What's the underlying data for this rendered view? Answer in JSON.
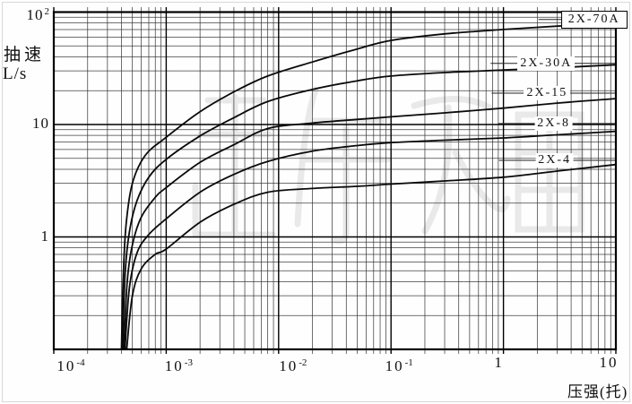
{
  "chart_data": {
    "type": "line",
    "title": "",
    "x_axis_label": "压强(托)",
    "y_axis_label_line1": "抽速",
    "y_axis_label_line2": "L/s",
    "log_x": true,
    "log_y": true,
    "x_range": [
      0.0001,
      10
    ],
    "y_range": [
      0.1,
      100
    ],
    "grid": "log-log with minor divisions 2-9 per decade",
    "line_color": "#0a0a0a",
    "x_ticks": [
      {
        "text": "10",
        "sup": "-4",
        "value": 0.0001
      },
      {
        "text": "10",
        "sup": "-3",
        "value": 0.001
      },
      {
        "text": "10",
        "sup": "-2",
        "value": 0.01
      },
      {
        "text": "10",
        "sup": "-1",
        "value": 0.1
      },
      {
        "text": "1",
        "sup": "",
        "value": 1
      },
      {
        "text": "10",
        "sup": "",
        "value": 10
      }
    ],
    "y_ticks": [
      {
        "text": "10",
        "sup": "2",
        "value": 100
      },
      {
        "text": "10",
        "sup": "",
        "value": 10
      },
      {
        "text": "1",
        "sup": "",
        "value": 1
      }
    ],
    "series": [
      {
        "name": "2X-70A",
        "boxed": true,
        "label_at": {
          "p": 6.4,
          "s": 86
        },
        "points": [
          [
            0.0004,
            0.1
          ],
          [
            0.000415,
            0.45
          ],
          [
            0.00044,
            1.3
          ],
          [
            0.0005,
            3.0
          ],
          [
            0.00065,
            5.3
          ],
          [
            0.001,
            7.7
          ],
          [
            0.002,
            13
          ],
          [
            0.004,
            19.5
          ],
          [
            0.008,
            27
          ],
          [
            0.02,
            36
          ],
          [
            0.05,
            47
          ],
          [
            0.1,
            56
          ],
          [
            0.3,
            64
          ],
          [
            1,
            70
          ],
          [
            3,
            75
          ],
          [
            10,
            80
          ]
        ]
      },
      {
        "name": "2X-30A",
        "boxed": false,
        "label_at": {
          "p": 2.4,
          "s": 35
        },
        "points": [
          [
            0.00041,
            0.1
          ],
          [
            0.00043,
            0.45
          ],
          [
            0.00047,
            1.1
          ],
          [
            0.00055,
            2.1
          ],
          [
            0.0007,
            3.4
          ],
          [
            0.001,
            4.9
          ],
          [
            0.002,
            7.9
          ],
          [
            0.004,
            11.5
          ],
          [
            0.008,
            16
          ],
          [
            0.02,
            20.5
          ],
          [
            0.05,
            24.5
          ],
          [
            0.1,
            27
          ],
          [
            0.3,
            29
          ],
          [
            1,
            30.5
          ],
          [
            3,
            32
          ],
          [
            10,
            34
          ]
        ]
      },
      {
        "name": "2X-15",
        "boxed": false,
        "label_at": {
          "p": 2.45,
          "s": 19
        },
        "points": [
          [
            0.00042,
            0.1
          ],
          [
            0.00045,
            0.4
          ],
          [
            0.0005,
            0.85
          ],
          [
            0.0006,
            1.5
          ],
          [
            0.0008,
            2.25
          ],
          [
            0.001,
            2.75
          ],
          [
            0.002,
            4.6
          ],
          [
            0.004,
            6.6
          ],
          [
            0.008,
            9.2
          ],
          [
            0.02,
            10.3
          ],
          [
            0.05,
            11.1
          ],
          [
            0.1,
            11.7
          ],
          [
            0.3,
            12.7
          ],
          [
            1,
            14
          ],
          [
            3,
            15.5
          ],
          [
            10,
            17
          ]
        ]
      },
      {
        "name": "2X-8",
        "boxed": false,
        "label_at": {
          "p": 2.8,
          "s": 10.2
        },
        "points": [
          [
            0.00043,
            0.1
          ],
          [
            0.00047,
            0.35
          ],
          [
            0.00055,
            0.72
          ],
          [
            0.0007,
            1.05
          ],
          [
            0.001,
            1.45
          ],
          [
            0.002,
            2.5
          ],
          [
            0.004,
            3.6
          ],
          [
            0.008,
            4.7
          ],
          [
            0.02,
            5.8
          ],
          [
            0.05,
            6.5
          ],
          [
            0.1,
            6.9
          ],
          [
            0.3,
            7.25
          ],
          [
            1,
            7.6
          ],
          [
            3,
            8.1
          ],
          [
            10,
            8.7
          ]
        ]
      },
      {
        "name": "2X-4",
        "boxed": false,
        "label_at": {
          "p": 2.85,
          "s": 4.8
        },
        "points": [
          [
            0.000445,
            0.1
          ],
          [
            0.0005,
            0.3
          ],
          [
            0.0006,
            0.52
          ],
          [
            0.0008,
            0.7
          ],
          [
            0.001,
            0.78
          ],
          [
            0.002,
            1.35
          ],
          [
            0.004,
            1.95
          ],
          [
            0.008,
            2.5
          ],
          [
            0.02,
            2.7
          ],
          [
            0.05,
            2.82
          ],
          [
            0.1,
            2.95
          ],
          [
            0.3,
            3.15
          ],
          [
            1,
            3.4
          ],
          [
            3,
            3.85
          ],
          [
            10,
            4.4
          ]
        ]
      }
    ]
  }
}
